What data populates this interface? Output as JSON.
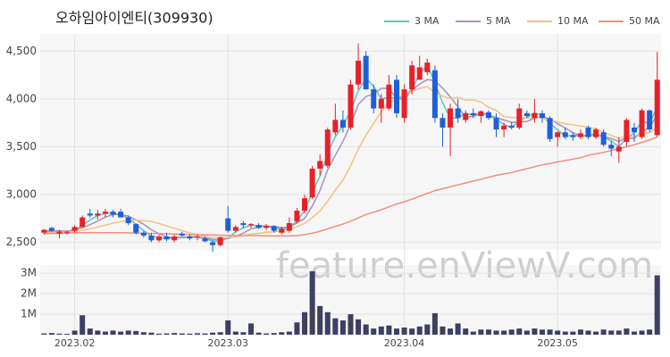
{
  "watermark": "feature.enViewV.com",
  "chart_data": [
    {
      "type": "candlestick",
      "title": "오하임아이엔티(309930)",
      "up_color": "#e8202a",
      "down_color": "#1f5fd6",
      "grid": true,
      "legend": "top-right",
      "open": [
        2600,
        2650,
        2590,
        2600,
        2620,
        2660,
        2800,
        2780,
        2800,
        2820,
        2820,
        2760,
        2690,
        2600,
        2570,
        2520,
        2560,
        2520,
        2590,
        2560,
        2550,
        2540,
        2500,
        2470,
        2750,
        2620,
        2700,
        2680,
        2680,
        2650,
        2670,
        2600,
        2620,
        2720,
        2830,
        2970,
        3270,
        3300,
        3650,
        3780,
        3700,
        4150,
        4450,
        4100,
        3900,
        3900,
        4200,
        3800,
        4100,
        4200,
        4280,
        4300,
        3800,
        3700,
        3900,
        3780,
        3850,
        3820,
        3860,
        3800,
        3680,
        3720,
        3700,
        3850,
        3800,
        3850,
        3800,
        3600,
        3650,
        3620,
        3600,
        3700,
        3600,
        3650,
        3520,
        3450,
        3550,
        3700,
        3600,
        3880,
        3620
      ],
      "high": [
        2640,
        2660,
        2630,
        2620,
        2680,
        2780,
        2850,
        2840,
        2850,
        2840,
        2850,
        2780,
        2700,
        2620,
        2600,
        2580,
        2600,
        2580,
        2610,
        2580,
        2580,
        2560,
        2520,
        2560,
        2880,
        2680,
        2720,
        2700,
        2700,
        2690,
        2680,
        2660,
        2760,
        2860,
        3000,
        3300,
        3420,
        3700,
        3950,
        3880,
        4200,
        4580,
        4500,
        4150,
        4050,
        4250,
        4250,
        4150,
        4400,
        4450,
        4420,
        4350,
        3850,
        3950,
        4000,
        3880,
        3900,
        3880,
        3880,
        3850,
        3750,
        3760,
        3950,
        3880,
        4000,
        3880,
        3820,
        3660,
        3700,
        3650,
        3680,
        3720,
        3700,
        3680,
        3560,
        3600,
        3800,
        3750,
        3900,
        3890,
        4490
      ],
      "low": [
        2580,
        2610,
        2540,
        2580,
        2600,
        2650,
        2760,
        2740,
        2760,
        2760,
        2760,
        2680,
        2580,
        2550,
        2500,
        2500,
        2510,
        2500,
        2560,
        2520,
        2520,
        2500,
        2400,
        2460,
        2600,
        2600,
        2650,
        2650,
        2640,
        2630,
        2600,
        2580,
        2600,
        2700,
        2800,
        2950,
        3200,
        3280,
        3620,
        3650,
        3680,
        4100,
        4100,
        3850,
        3750,
        3880,
        3800,
        3750,
        4050,
        4200,
        4250,
        3750,
        3500,
        3400,
        3750,
        3750,
        3800,
        3750,
        3780,
        3600,
        3600,
        3680,
        3680,
        3800,
        3750,
        3750,
        3550,
        3500,
        3580,
        3560,
        3580,
        3580,
        3580,
        3500,
        3400,
        3330,
        3500,
        3550,
        3580,
        3650,
        3600
      ],
      "close": [
        2630,
        2620,
        2610,
        2610,
        2660,
        2760,
        2780,
        2800,
        2820,
        2790,
        2760,
        2700,
        2600,
        2570,
        2520,
        2560,
        2530,
        2560,
        2570,
        2540,
        2560,
        2510,
        2470,
        2550,
        2620,
        2660,
        2680,
        2690,
        2650,
        2670,
        2620,
        2640,
        2700,
        2830,
        2960,
        3270,
        3350,
        3680,
        3780,
        3700,
        4150,
        4400,
        4100,
        3900,
        4000,
        4150,
        3850,
        4100,
        4350,
        4330,
        4380,
        3800,
        3700,
        3900,
        3800,
        3850,
        3830,
        3870,
        3800,
        3680,
        3720,
        3700,
        3900,
        3820,
        3850,
        3800,
        3580,
        3650,
        3600,
        3600,
        3640,
        3600,
        3680,
        3520,
        3480,
        3500,
        3780,
        3650,
        3880,
        3680,
        4200
      ],
      "series": [
        {
          "name": "3 MA",
          "color": "#5ec4c0",
          "values": [
            2620,
            2620,
            2620,
            2613,
            2627,
            2677,
            2733,
            2780,
            2800,
            2803,
            2790,
            2750,
            2687,
            2623,
            2563,
            2550,
            2537,
            2550,
            2553,
            2557,
            2557,
            2537,
            2513,
            2510,
            2547,
            2610,
            2653,
            2677,
            2673,
            2670,
            2647,
            2643,
            2653,
            2723,
            2830,
            3020,
            3193,
            3433,
            3603,
            3720,
            3877,
            4083,
            4217,
            4133,
            4000,
            4017,
            4000,
            4033,
            4100,
            4260,
            4353,
            4170,
            3960,
            3800,
            3800,
            3850,
            3827,
            3850,
            3833,
            3783,
            3733,
            3700,
            3773,
            3807,
            3857,
            3823,
            3743,
            3677,
            3610,
            3617,
            3613,
            3613,
            3640,
            3600,
            3560,
            3500,
            3587,
            3643,
            3770,
            3737,
            3920
          ]
        },
        {
          "name": "5 MA",
          "color": "#a990c0",
          "values": [
            2610,
            2615,
            2620,
            2615,
            2626,
            2652,
            2684,
            2722,
            2764,
            2790,
            2790,
            2774,
            2734,
            2688,
            2630,
            2590,
            2556,
            2548,
            2548,
            2552,
            2552,
            2546,
            2530,
            2526,
            2540,
            2562,
            2596,
            2640,
            2660,
            2670,
            2662,
            2654,
            2656,
            2702,
            2750,
            2880,
            3042,
            3258,
            3408,
            3556,
            3732,
            3942,
            4026,
            4050,
            4110,
            4110,
            4000,
            4000,
            4090,
            4156,
            4202,
            4192,
            4112,
            4022,
            3916,
            3810,
            3816,
            3850,
            3830,
            3806,
            3780,
            3754,
            3760,
            3764,
            3798,
            3814,
            3790,
            3740,
            3696,
            3646,
            3614,
            3618,
            3624,
            3608,
            3584,
            3556,
            3592,
            3586,
            3658,
            3698,
            3838
          ]
        },
        {
          "name": "10 MA",
          "color": "#f2c27f",
          "values": [
            2600,
            2603,
            2606,
            2608,
            2612,
            2625,
            2640,
            2660,
            2680,
            2700,
            2716,
            2730,
            2730,
            2726,
            2716,
            2696,
            2670,
            2646,
            2622,
            2598,
            2578,
            2560,
            2550,
            2548,
            2550,
            2558,
            2572,
            2585,
            2594,
            2604,
            2610,
            2622,
            2636,
            2664,
            2698,
            2758,
            2826,
            2930,
            3046,
            3150,
            3300,
            3474,
            3620,
            3742,
            3866,
            3954,
            4004,
            4046,
            4080,
            4110,
            4128,
            4068,
            4028,
            4006,
            4016,
            3986,
            3990,
            3967,
            3912,
            3880,
            3814,
            3804,
            3804,
            3800,
            3806,
            3801,
            3776,
            3760,
            3740,
            3730,
            3716,
            3706,
            3684,
            3654,
            3617,
            3587,
            3606,
            3611,
            3639,
            3647,
            3703
          ]
        },
        {
          "name": "50 MA",
          "color": "#f08f7a",
          "values": [
            2590,
            2592,
            2594,
            2596,
            2598,
            2600,
            2600,
            2600,
            2600,
            2600,
            2600,
            2598,
            2596,
            2594,
            2592,
            2590,
            2588,
            2586,
            2584,
            2582,
            2580,
            2578,
            2576,
            2574,
            2572,
            2570,
            2570,
            2570,
            2570,
            2568,
            2566,
            2566,
            2566,
            2570,
            2580,
            2595,
            2615,
            2640,
            2665,
            2690,
            2720,
            2755,
            2790,
            2815,
            2840,
            2870,
            2900,
            2925,
            2950,
            2980,
            3010,
            3040,
            3060,
            3080,
            3100,
            3120,
            3140,
            3160,
            3180,
            3200,
            3215,
            3230,
            3250,
            3270,
            3290,
            3310,
            3325,
            3340,
            3355,
            3370,
            3385,
            3410,
            3425,
            3440,
            3460,
            3480,
            3500,
            3520,
            3545,
            3570,
            3600
          ]
        }
      ],
      "ylim": [
        2420,
        4680
      ],
      "yticks": [
        {
          "value": 2500,
          "label": "2,500"
        },
        {
          "value": 3000,
          "label": "3,000"
        },
        {
          "value": 3500,
          "label": "3,500"
        },
        {
          "value": 4000,
          "label": "4,000"
        },
        {
          "value": 4500,
          "label": "4,500"
        }
      ]
    },
    {
      "type": "bar",
      "color": "#3d3f63",
      "grid": true,
      "categories": [
        null,
        null,
        null,
        null,
        "2023.02",
        null,
        null,
        null,
        null,
        null,
        null,
        null,
        null,
        null,
        null,
        null,
        null,
        null,
        null,
        null,
        null,
        null,
        null,
        null,
        "2023.03",
        null,
        null,
        null,
        null,
        null,
        null,
        null,
        null,
        null,
        null,
        null,
        null,
        null,
        null,
        null,
        null,
        null,
        null,
        null,
        null,
        null,
        null,
        "2023.04",
        null,
        null,
        null,
        null,
        null,
        null,
        null,
        null,
        null,
        null,
        null,
        null,
        null,
        null,
        null,
        null,
        null,
        null,
        null,
        "2023.05",
        null,
        null,
        null,
        null,
        null,
        null,
        null,
        null,
        null,
        null,
        null,
        null,
        null
      ],
      "values": [
        60000,
        80000,
        50000,
        40000,
        200000,
        950000,
        300000,
        200000,
        150000,
        200000,
        150000,
        200000,
        180000,
        120000,
        100000,
        50000,
        60000,
        80000,
        60000,
        50000,
        70000,
        60000,
        100000,
        120000,
        700000,
        150000,
        120000,
        550000,
        100000,
        60000,
        80000,
        120000,
        150000,
        600000,
        1100000,
        3100000,
        1400000,
        1100000,
        800000,
        700000,
        1000000,
        750000,
        500000,
        300000,
        400000,
        450000,
        300000,
        350000,
        300000,
        400000,
        500000,
        1050000,
        400000,
        300000,
        550000,
        300000,
        150000,
        250000,
        250000,
        200000,
        200000,
        250000,
        300000,
        200000,
        300000,
        250000,
        250000,
        200000,
        150000,
        150000,
        250000,
        200000,
        150000,
        250000,
        200000,
        200000,
        300000,
        150000,
        200000,
        250000,
        2900000
      ],
      "ylim": [
        0,
        3400000
      ],
      "yticks": [
        {
          "value": 1000000,
          "label": "1M"
        },
        {
          "value": 2000000,
          "label": "2M"
        },
        {
          "value": 3000000,
          "label": "3M"
        }
      ]
    }
  ]
}
